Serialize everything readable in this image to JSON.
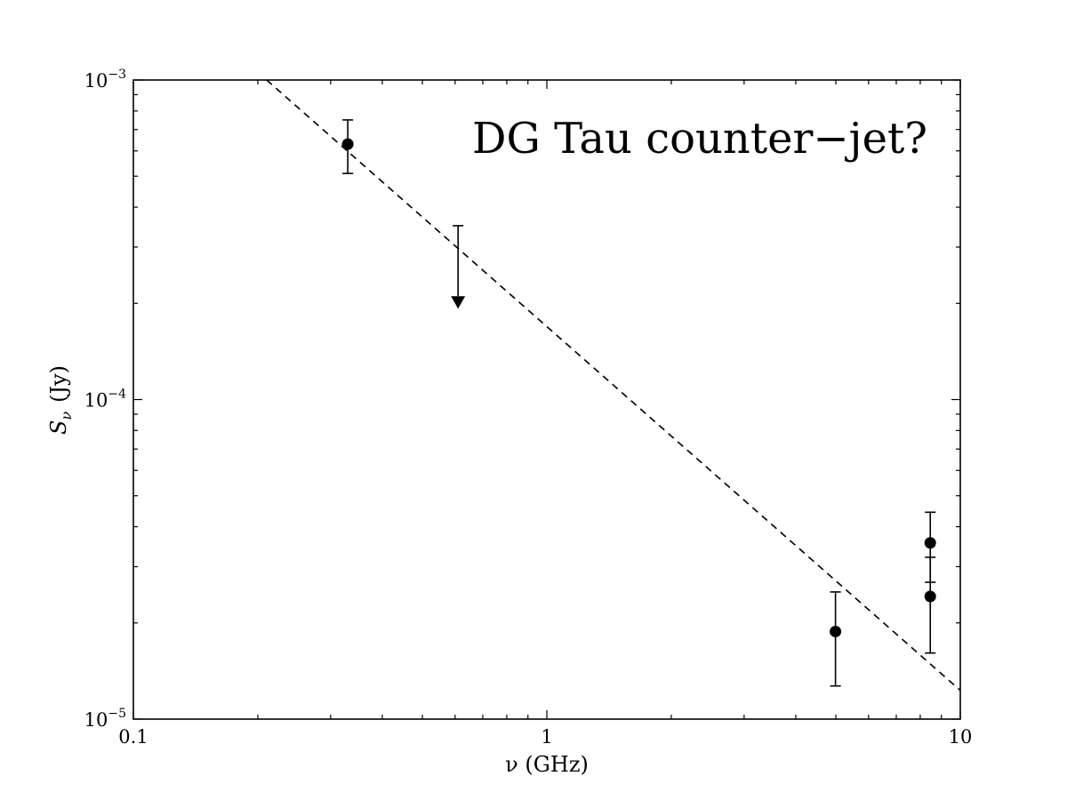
{
  "chart_data": {
    "type": "scatter",
    "title": "",
    "annotation": "DG Tau counter−jet?",
    "xlabel": "ν (GHz)",
    "ylabel": "Sν (Jy)",
    "ylabel_base": "S",
    "ylabel_sub": "ν",
    "ylabel_unit": "(Jy)",
    "x_scale": "log",
    "y_scale": "log",
    "xlim": [
      0.1,
      10
    ],
    "ylim": [
      1e-05,
      0.001
    ],
    "x_ticks": [
      {
        "value": 0.1,
        "label": "0.1"
      },
      {
        "value": 1,
        "label": "1"
      },
      {
        "value": 10,
        "label": "10"
      }
    ],
    "y_ticks": [
      {
        "value": 1e-05,
        "base": "10",
        "exp": "−5"
      },
      {
        "value": 0.0001,
        "base": "10",
        "exp": "−4"
      },
      {
        "value": 0.001,
        "base": "10",
        "exp": "−3"
      }
    ],
    "grid": false,
    "legend": "none",
    "points": [
      {
        "x": 0.33,
        "y": 0.00063,
        "err_low": 0.00051,
        "err_high": 0.00075
      },
      {
        "x": 4.99,
        "y": 1.88e-05,
        "err_low": 1.27e-05,
        "err_high": 2.5e-05
      },
      {
        "x": 8.46,
        "y": 3.56e-05,
        "err_low": 2.68e-05,
        "err_high": 4.44e-05
      },
      {
        "x": 8.46,
        "y": 2.42e-05,
        "err_low": 1.61e-05,
        "err_high": 3.21e-05
      }
    ],
    "upper_limits": [
      {
        "x": 0.61,
        "y_top": 0.00035,
        "y_limit": 0.000195
      }
    ],
    "fit_line": {
      "style": "dashed",
      "points": [
        [
          0.21,
          0.001
        ],
        [
          10,
          1.23e-05
        ]
      ]
    },
    "colors": {
      "markers": "#000000",
      "line": "#000000",
      "axes": "#000000"
    }
  }
}
